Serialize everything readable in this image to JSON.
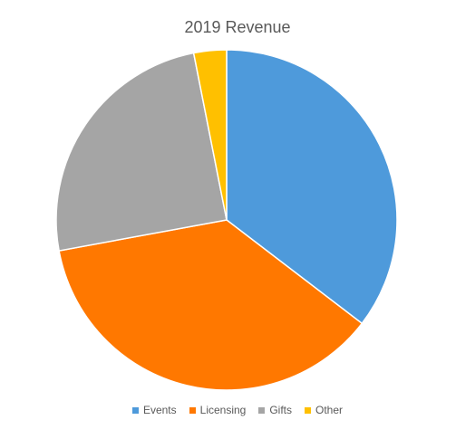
{
  "chart_data": {
    "type": "pie",
    "title": "2019 Revenue",
    "categories": [
      "Events",
      "Licensing",
      "Gifts",
      "Other"
    ],
    "values": [
      35.4,
      36.7,
      24.8,
      3.1
    ],
    "colors": [
      "#4E9ADB",
      "#FF7800",
      "#A5A5A5",
      "#FFC000"
    ],
    "legend_position": "bottom",
    "start_angle_deg": 0,
    "direction": "clockwise"
  }
}
